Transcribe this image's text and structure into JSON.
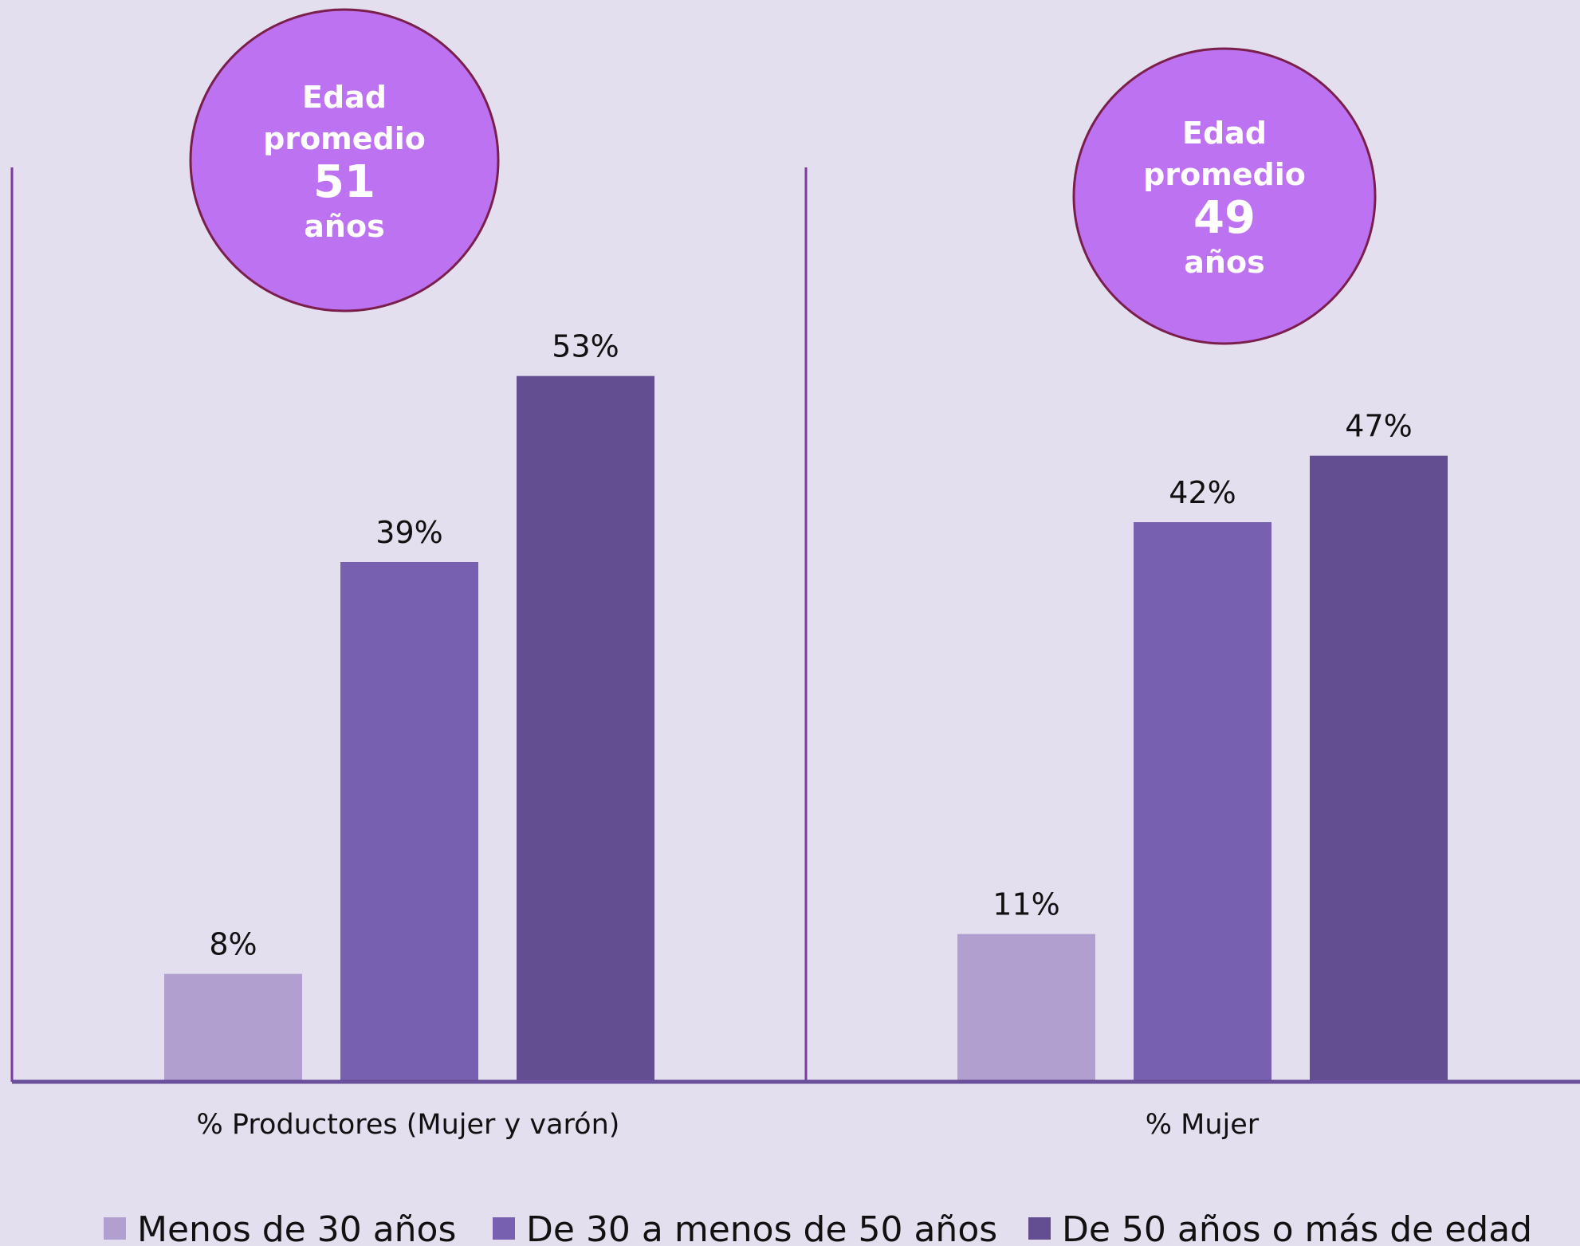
{
  "chart_data": {
    "type": "bar",
    "categories": [
      "% Productores (Mujer y varón)",
      "% Mujer"
    ],
    "series": [
      {
        "name": "Menos de 30 años",
        "values": [
          8,
          11
        ],
        "color": "#b09fcf"
      },
      {
        "name": "De 30 a menos de 50 años",
        "values": [
          39,
          42
        ],
        "color": "#7860b0"
      },
      {
        "name": "De 50 años o más de edad",
        "values": [
          53,
          47
        ],
        "color": "#624e91"
      }
    ],
    "data_label_suffix": "%",
    "ylim": [
      0,
      66
    ],
    "grid": false,
    "legend_position": "bottom",
    "annotations": [
      {
        "label": "Edad promedio",
        "value": "51",
        "unit": "años",
        "category": "% Productores (Mujer y varón)"
      },
      {
        "label": "Edad promedio",
        "value": "49",
        "unit": "años",
        "category": "% Mujer"
      }
    ],
    "colors": {
      "background": "#e4dfef",
      "bubble_fill": "#bd72f1",
      "bubble_stroke": "#7a1f4c",
      "axis": "#6a4f9a",
      "divider": "#7a3aa0"
    }
  }
}
